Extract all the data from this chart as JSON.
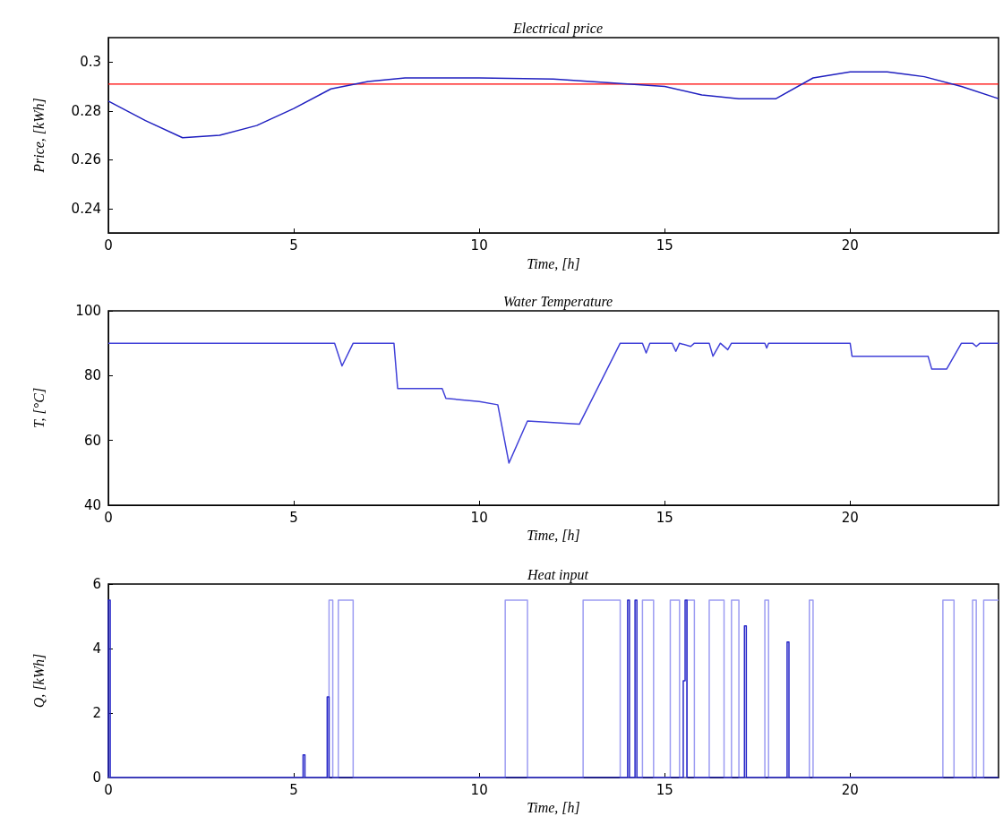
{
  "chart_data": [
    {
      "type": "line",
      "title": "Electrical price",
      "xlabel": "Time, [h]",
      "ylabel": "Price, [kWh]",
      "xlim": [
        0,
        24
      ],
      "xticks": [
        0,
        5,
        10,
        15,
        20
      ],
      "ylim": [
        0.23,
        0.31
      ],
      "yticks": [
        0.24,
        0.26,
        0.28,
        0.3
      ],
      "grid": false,
      "marker": "none",
      "line_style": "solid",
      "series": [
        {
          "color": "#2020c0",
          "x": [
            0,
            1,
            2,
            3,
            4,
            5,
            6,
            7,
            8,
            10,
            12,
            13,
            15,
            16,
            17,
            18,
            19,
            20,
            21,
            22,
            23,
            24
          ],
          "values": [
            0.284,
            0.276,
            0.269,
            0.27,
            0.274,
            0.281,
            0.289,
            0.292,
            0.2935,
            0.2935,
            0.293,
            0.292,
            0.29,
            0.2865,
            0.285,
            0.285,
            0.2935,
            0.296,
            0.296,
            0.294,
            0.29,
            0.285
          ]
        }
      ],
      "ref_lines": [
        {
          "axis": "y",
          "value": 0.291,
          "color": "#ff0000"
        }
      ]
    },
    {
      "type": "line",
      "title": "Water Temperature",
      "xlabel": "Time, [h]",
      "ylabel": "T, [°C]",
      "xlim": [
        0,
        24
      ],
      "xticks": [
        0,
        5,
        10,
        15,
        20
      ],
      "ylim": [
        40,
        100
      ],
      "yticks": [
        40,
        60,
        80,
        100
      ],
      "grid": false,
      "marker": "none",
      "line_style": "solid",
      "series": [
        {
          "color": "#4040d8",
          "x": [
            0,
            6.1,
            6.3,
            6.6,
            7.7,
            7.8,
            9,
            9.1,
            10,
            10.5,
            10.8,
            11.3,
            12,
            12.7,
            13.8,
            14.4,
            14.5,
            14.6,
            15.2,
            15.3,
            15.4,
            15.7,
            15.8,
            16.2,
            16.3,
            16.5,
            16.7,
            16.8,
            17.7,
            17.75,
            17.8,
            20,
            20.05,
            22.1,
            22.2,
            22.6,
            23,
            23.3,
            23.4,
            23.5,
            24
          ],
          "values": [
            90,
            90,
            83,
            90,
            90,
            76,
            76,
            73,
            72,
            71,
            53,
            66,
            65.5,
            65,
            90,
            90,
            87,
            90,
            90,
            87.5,
            90,
            89,
            90,
            90,
            86,
            90,
            88,
            90,
            90,
            88.5,
            90,
            90,
            86,
            86,
            82,
            82,
            90,
            90,
            89,
            90,
            90
          ]
        }
      ]
    },
    {
      "type": "line",
      "title": "Heat input",
      "xlabel": "Time, [h]",
      "ylabel": "Q, [kWh]",
      "xlim": [
        0,
        24
      ],
      "xticks": [
        0,
        5,
        10,
        15,
        20
      ],
      "ylim": [
        0,
        6
      ],
      "yticks": [
        0,
        2,
        4,
        6
      ],
      "grid": false,
      "marker": "none",
      "line_style": "solid",
      "series": [
        {
          "color": "#9c9cf2",
          "x": [
            0,
            5.95,
            5.95,
            6.05,
            6.05,
            6.2,
            6.2,
            6.6,
            6.6,
            10.7,
            10.7,
            11.3,
            11.3,
            12.8,
            12.8,
            13.8,
            13.8,
            14.4,
            14.4,
            14.7,
            14.7,
            15.15,
            15.15,
            15.4,
            15.4,
            15.6,
            15.6,
            15.8,
            15.8,
            16.2,
            16.2,
            16.6,
            16.6,
            16.8,
            16.8,
            17.0,
            17.0,
            17.7,
            17.7,
            17.8,
            17.8,
            18.9,
            18.9,
            19.0,
            19.0,
            22.5,
            22.5,
            22.8,
            22.8,
            23.3,
            23.3,
            23.4,
            23.4,
            23.6,
            23.6,
            24
          ],
          "values": [
            0,
            0,
            5.5,
            5.5,
            0,
            0,
            5.5,
            5.5,
            0,
            0,
            5.5,
            5.5,
            0,
            0,
            5.5,
            5.5,
            0,
            0,
            5.5,
            5.5,
            0,
            0,
            5.5,
            5.5,
            0,
            0,
            5.5,
            5.5,
            0,
            0,
            5.5,
            5.5,
            0,
            0,
            5.5,
            5.5,
            0,
            0,
            5.5,
            5.5,
            0,
            0,
            5.5,
            5.5,
            0,
            0,
            5.5,
            5.5,
            0,
            0,
            5.5,
            5.5,
            0,
            0,
            5.5,
            5.5
          ]
        },
        {
          "color": "#2828c8",
          "x": [
            0,
            0,
            0.05,
            0.05,
            5.25,
            5.25,
            5.3,
            5.3,
            5.9,
            5.9,
            5.95,
            5.95,
            14.0,
            14.0,
            14.05,
            14.05,
            14.2,
            14.2,
            14.25,
            14.25,
            15.5,
            15.5,
            15.55,
            15.55,
            15.6,
            15.6,
            17.15,
            17.15,
            17.2,
            17.2,
            18.3,
            18.3,
            18.35,
            18.35,
            24
          ],
          "values": [
            0,
            5.5,
            5.5,
            0,
            0,
            0.7,
            0.7,
            0,
            0,
            2.5,
            2.5,
            0,
            0,
            5.5,
            5.5,
            0,
            0,
            5.5,
            5.5,
            0,
            0,
            3,
            3,
            5.5,
            5.5,
            0,
            0,
            4.7,
            4.7,
            0,
            0,
            4.2,
            4.2,
            0,
            0
          ]
        }
      ]
    }
  ]
}
